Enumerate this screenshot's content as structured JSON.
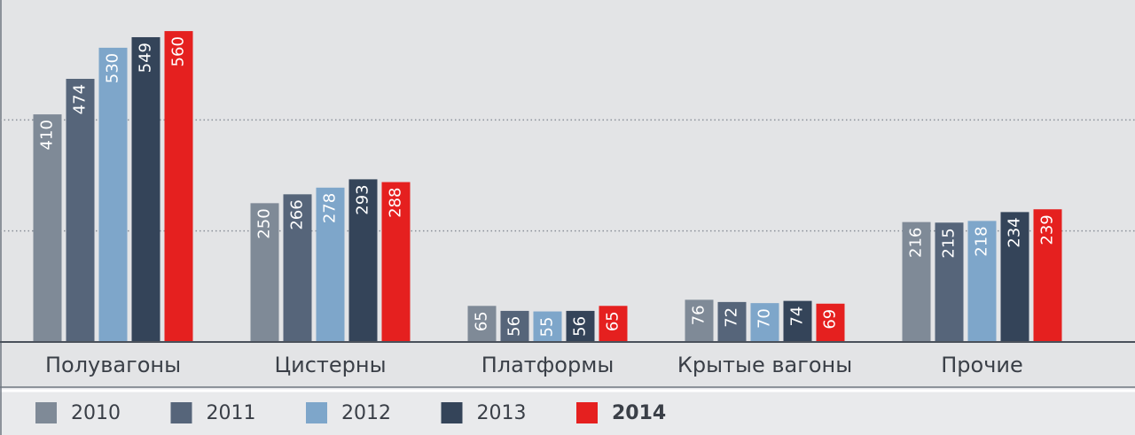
{
  "chart_data": {
    "type": "bar",
    "categories": [
      "Полувагоны",
      "Цистерны",
      "Платформы",
      "Крытые вагоны",
      "Прочие"
    ],
    "series": [
      {
        "name": "2010",
        "color": "#7f8a97",
        "values": [
          410,
          250,
          65,
          76,
          216
        ]
      },
      {
        "name": "2011",
        "color": "#56657a",
        "values": [
          474,
          266,
          56,
          72,
          215
        ]
      },
      {
        "name": "2012",
        "color": "#7ea6ca",
        "values": [
          530,
          278,
          55,
          70,
          218
        ]
      },
      {
        "name": "2013",
        "color": "#344459",
        "values": [
          549,
          293,
          56,
          74,
          234
        ]
      },
      {
        "name": "2014",
        "color": "#e5201f",
        "values": [
          560,
          288,
          65,
          69,
          239
        ]
      }
    ],
    "ylim": [
      0,
      616
    ],
    "yticks": [
      200,
      400
    ],
    "grid": true
  }
}
